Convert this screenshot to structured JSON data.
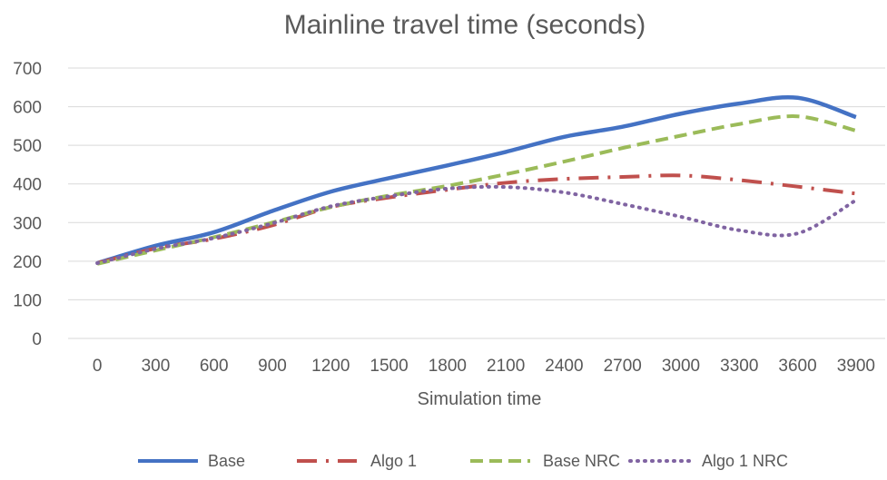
{
  "chart_data": {
    "type": "line",
    "title": "Mainline travel time (seconds)",
    "xlabel": "Simulation time",
    "ylabel": "",
    "x": [
      0,
      300,
      600,
      900,
      1200,
      1500,
      1800,
      2100,
      2400,
      2700,
      3000,
      3300,
      3600,
      3900
    ],
    "ylim": [
      0,
      700
    ],
    "yticks": [
      0,
      100,
      200,
      300,
      400,
      500,
      600,
      700
    ],
    "grid": "horizontal",
    "legend_position": "bottom",
    "series": [
      {
        "name": "Base",
        "color": "#4472C4",
        "dash": "solid",
        "values": [
          195,
          240,
          275,
          330,
          380,
          415,
          448,
          483,
          522,
          548,
          582,
          608,
          623,
          573
        ]
      },
      {
        "name": "Algo 1",
        "color": "#C0504D",
        "dash": "dashdot",
        "values": [
          195,
          233,
          258,
          293,
          340,
          365,
          385,
          403,
          413,
          418,
          422,
          410,
          393,
          375
        ]
      },
      {
        "name": "Base NRC",
        "color": "#9BBB59",
        "dash": "dash",
        "values": [
          193,
          228,
          262,
          300,
          340,
          370,
          395,
          425,
          458,
          493,
          525,
          555,
          575,
          538
        ]
      },
      {
        "name": "Algo 1 NRC",
        "color": "#8064A2",
        "dash": "dot",
        "values": [
          195,
          232,
          260,
          298,
          342,
          368,
          388,
          392,
          378,
          348,
          315,
          280,
          272,
          358
        ]
      }
    ]
  }
}
